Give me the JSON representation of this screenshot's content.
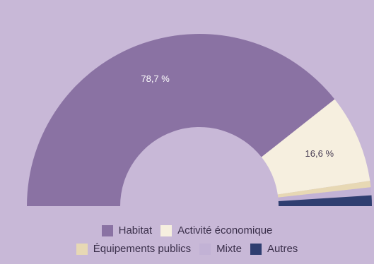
{
  "chart_data": {
    "type": "pie",
    "variant": "half-donut",
    "categories": [
      "Habitat",
      "Activité économique",
      "Équipements publics",
      "Mixte",
      "Autres"
    ],
    "values": [
      78.7,
      16.6,
      1.2,
      1.5,
      2.0
    ],
    "data_labels": [
      "78,7 %",
      "16,6 %",
      "",
      "",
      ""
    ],
    "colors": [
      "#8a72a3",
      "#f6efdf",
      "#e7d8b4",
      "#c2b2d5",
      "#2f3e70"
    ],
    "legend_position": "bottom"
  },
  "legend": {
    "row1": [
      "Habitat",
      "Activité économique"
    ],
    "row2": [
      "Équipements publics",
      "Mixte",
      "Autres"
    ]
  }
}
